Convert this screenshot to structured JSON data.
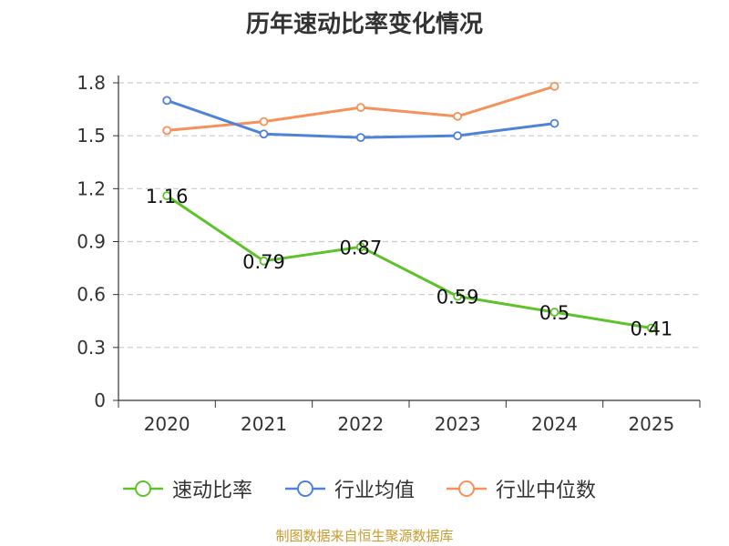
{
  "chart_data": {
    "type": "line",
    "title": "历年速动比率变化情况",
    "categories": [
      "2020",
      "2021",
      "2022",
      "2023",
      "2024",
      "2025"
    ],
    "y_ticks": [
      "0",
      "0.3",
      "0.6",
      "0.9",
      "1.2",
      "1.5",
      "1.8"
    ],
    "ylim": [
      0,
      1.8
    ],
    "grid": true,
    "legend_position": "bottom",
    "series": [
      {
        "name": "速动比率",
        "color": "#5ec22b",
        "values": [
          1.16,
          0.79,
          0.87,
          0.59,
          0.5,
          0.41
        ],
        "labels": [
          "1.16",
          "0.79",
          "0.87",
          "0.59",
          "0.5",
          "0.41"
        ]
      },
      {
        "name": "行业均值",
        "color": "#4f83d9",
        "values": [
          1.7,
          1.51,
          1.49,
          1.5,
          1.57,
          null
        ]
      },
      {
        "name": "行业中位数",
        "color": "#f5915b",
        "values": [
          1.53,
          1.58,
          1.66,
          1.61,
          1.78,
          null
        ]
      }
    ]
  },
  "source_note": "制图数据来自恒生聚源数据库"
}
